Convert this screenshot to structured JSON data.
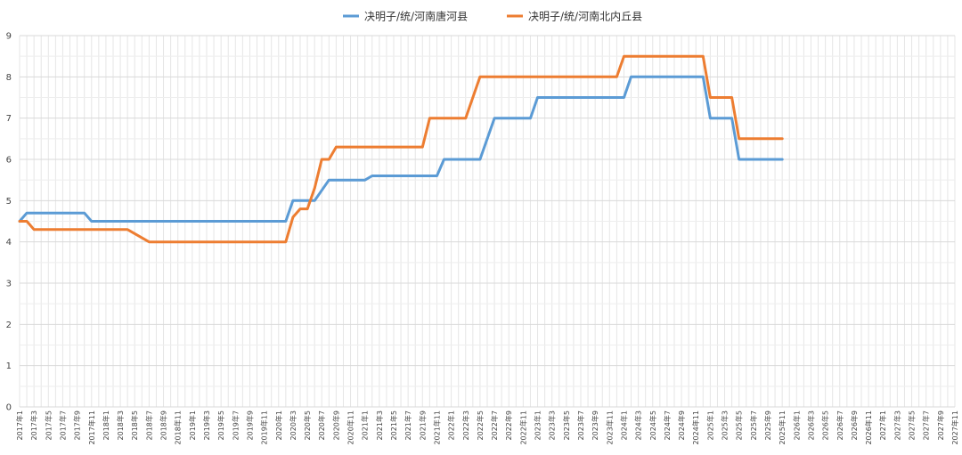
{
  "chart_data": {
    "type": "line",
    "title": "",
    "xlabel": "",
    "ylabel": "",
    "ylim": [
      0,
      9
    ],
    "yticks": [
      0,
      1,
      2,
      3,
      4,
      5,
      6,
      7,
      8,
      9
    ],
    "grid": true,
    "legend_position": "top",
    "categories": [
      "2017年1",
      "2017年3",
      "2017年5",
      "2017年7",
      "2017年9",
      "2017年11",
      "2018年1",
      "2018年3",
      "2018年5",
      "2018年7",
      "2018年9",
      "2018年11",
      "2019年1",
      "2019年3",
      "2019年5",
      "2019年7",
      "2019年9",
      "2019年11",
      "2020年1",
      "2020年3",
      "2020年5",
      "2020年7",
      "2020年9",
      "2020年11",
      "2021年1",
      "2021年3",
      "2021年5",
      "2021年7",
      "2021年9",
      "2021年11",
      "2022年1",
      "2022年3",
      "2022年5",
      "2022年7",
      "2022年9",
      "2022年11",
      "2023年1",
      "2023年3",
      "2023年5",
      "2023年7",
      "2023年9",
      "2023年11",
      "2024年1",
      "2024年3",
      "2024年5",
      "2024年7",
      "2024年9",
      "2024年11",
      "2025年1",
      "2025年3",
      "2025年5",
      "2025年7",
      "2025年9",
      "2025年11",
      "2026年1",
      "2026年3",
      "2026年5",
      "2026年7",
      "2026年9",
      "2026年11",
      "2027年1",
      "2027年3",
      "2027年5",
      "2027年7",
      "2027年9",
      "2027年11"
    ],
    "series": [
      {
        "name": "决明子/统/河南唐河县",
        "color": "#5b9bd5",
        "points": [
          [
            0,
            4.5
          ],
          [
            1,
            4.7
          ],
          [
            9,
            4.7
          ],
          [
            10,
            4.5
          ],
          [
            19,
            4.5
          ],
          [
            37,
            4.5
          ],
          [
            38,
            5.0
          ],
          [
            41,
            5.0
          ],
          [
            43,
            5.5
          ],
          [
            48,
            5.5
          ],
          [
            49,
            5.6
          ],
          [
            58,
            5.6
          ],
          [
            59,
            6.0
          ],
          [
            64,
            6.0
          ],
          [
            66,
            7.0
          ],
          [
            71,
            7.0
          ],
          [
            72,
            7.5
          ],
          [
            84,
            7.5
          ],
          [
            85,
            8.0
          ],
          [
            95,
            8.0
          ],
          [
            96,
            7.0
          ],
          [
            99,
            7.0
          ],
          [
            100,
            6.0
          ],
          [
            106,
            6.0
          ]
        ]
      },
      {
        "name": "决明子/统/河南北内丘县",
        "color": "#ed7d31",
        "points": [
          [
            0,
            4.5
          ],
          [
            1,
            4.5
          ],
          [
            2,
            4.3
          ],
          [
            15,
            4.3
          ],
          [
            18,
            4.0
          ],
          [
            37,
            4.0
          ],
          [
            38,
            4.6
          ],
          [
            39,
            4.8
          ],
          [
            40,
            4.8
          ],
          [
            41,
            5.3
          ],
          [
            42,
            6.0
          ],
          [
            43,
            6.0
          ],
          [
            44,
            6.3
          ],
          [
            56,
            6.3
          ],
          [
            57,
            7.0
          ],
          [
            62,
            7.0
          ],
          [
            64,
            8.0
          ],
          [
            83,
            8.0
          ],
          [
            84,
            8.5
          ],
          [
            95,
            8.5
          ],
          [
            96,
            7.5
          ],
          [
            99,
            7.5
          ],
          [
            100,
            6.5
          ],
          [
            106,
            6.5
          ]
        ]
      }
    ]
  }
}
